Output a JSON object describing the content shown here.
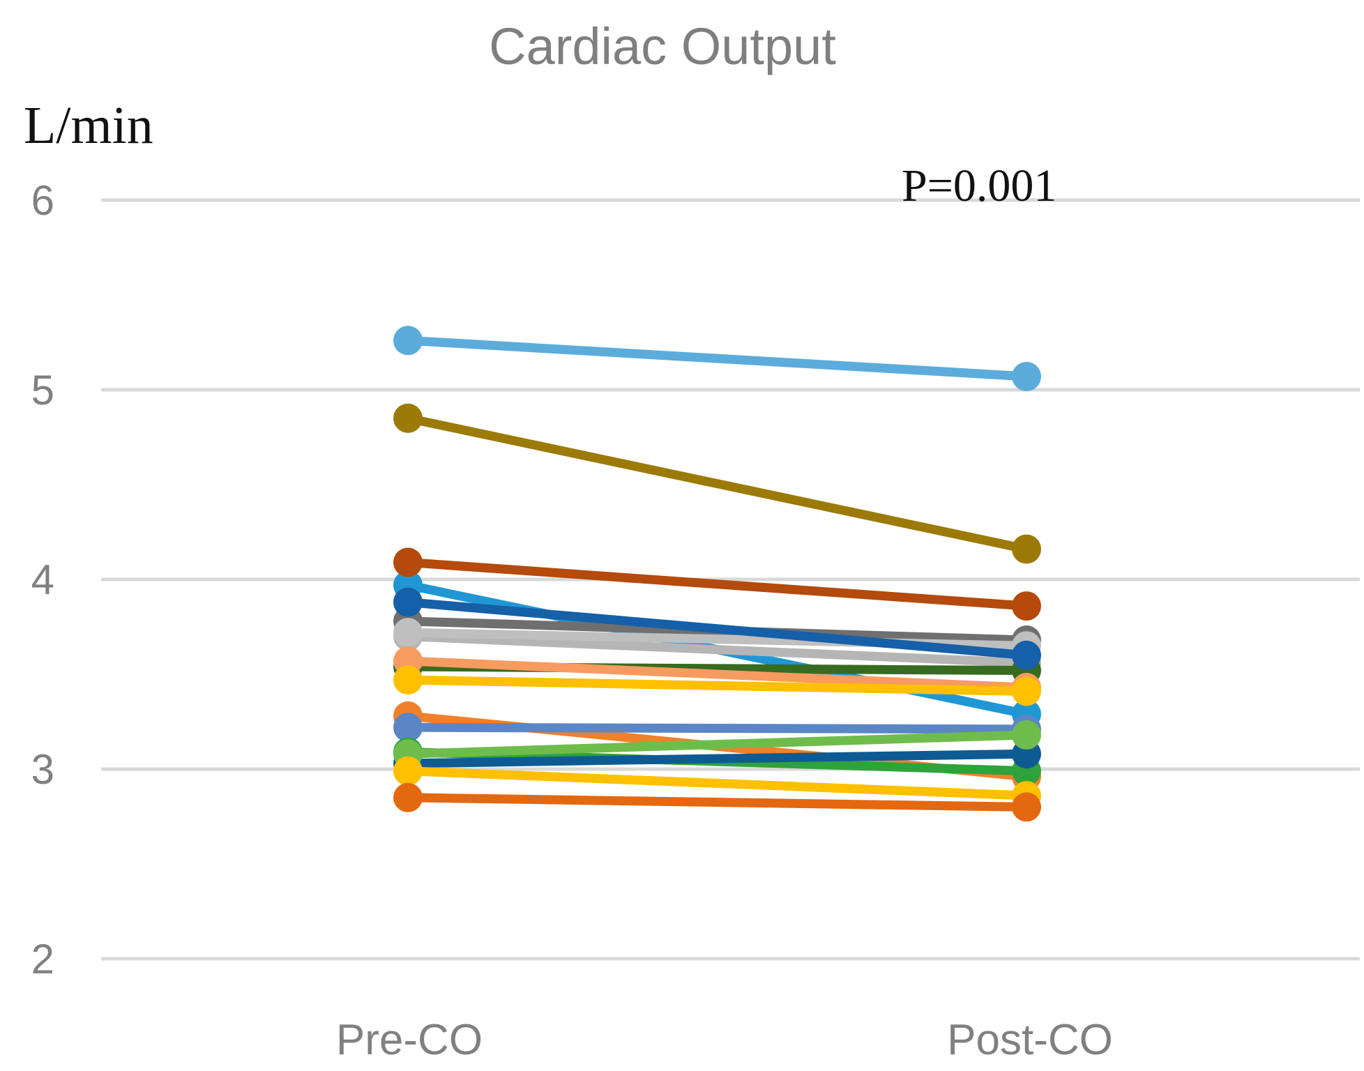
{
  "chart": {
    "title": "Cardiac Output",
    "unit_label": "L/min",
    "annotation": "P=0.001"
  },
  "chart_data": {
    "type": "line",
    "subtype": "paired-slope-chart",
    "title": "Cardiac Output",
    "ylabel": "L/min",
    "annotation": "P=0.001",
    "categories": [
      "Pre-CO",
      "Post-CO"
    ],
    "ytick_labels": [
      "6",
      "5",
      "4",
      "3",
      "2"
    ],
    "yticks": [
      6,
      5,
      4,
      3,
      2
    ],
    "ylim": [
      1.55,
      6.35
    ],
    "grid": "horizontal",
    "legend": "none",
    "grid_color": "#D9D9D9",
    "text_color": "#808080",
    "series": [
      {
        "name": "line-steep-skyblue",
        "color": "#2097D4",
        "values": [
          3.97,
          3.29
        ]
      },
      {
        "name": "line-silver-b",
        "color": "#B5B5B5",
        "values": [
          3.7,
          3.56
        ]
      },
      {
        "name": "line-dimgray",
        "color": "#6F6F6F",
        "values": [
          3.78,
          3.68
        ]
      },
      {
        "name": "line-silver",
        "color": "#BFBFBF",
        "values": [
          3.72,
          3.65
        ]
      },
      {
        "name": "line-forest-green",
        "color": "#376B1F",
        "values": [
          3.54,
          3.52
        ]
      },
      {
        "name": "line-salmon",
        "color": "#F89B60",
        "values": [
          3.57,
          3.43
        ]
      },
      {
        "name": "line-yellow-a",
        "color": "#FFC000",
        "values": [
          3.47,
          3.41
        ]
      },
      {
        "name": "line-orange",
        "color": "#F0802B",
        "values": [
          3.28,
          2.96
        ]
      },
      {
        "name": "line-cornflower",
        "color": "#5B86C6",
        "values": [
          3.22,
          3.21
        ]
      },
      {
        "name": "line-green-down",
        "color": "#2FA23C",
        "values": [
          3.09,
          2.99
        ]
      },
      {
        "name": "line-darkblue-b",
        "color": "#0E5B94",
        "values": [
          3.03,
          3.08
        ]
      },
      {
        "name": "line-green-up",
        "color": "#6EBD4C",
        "values": [
          3.08,
          3.18
        ]
      },
      {
        "name": "line-yellow-b",
        "color": "#FFC000",
        "values": [
          2.99,
          2.86
        ]
      },
      {
        "name": "line-darkorange",
        "color": "#E4680F",
        "values": [
          2.85,
          2.8
        ]
      },
      {
        "name": "line-darkblue-a",
        "color": "#1560A8",
        "values": [
          3.88,
          3.6
        ]
      },
      {
        "name": "line-darkred",
        "color": "#B44A0B",
        "values": [
          4.09,
          3.86
        ]
      },
      {
        "name": "line-olive",
        "color": "#9C7A08",
        "values": [
          4.85,
          4.16
        ]
      },
      {
        "name": "line-skyblue-top",
        "color": "#5BACDB",
        "values": [
          5.26,
          5.07
        ]
      }
    ]
  }
}
